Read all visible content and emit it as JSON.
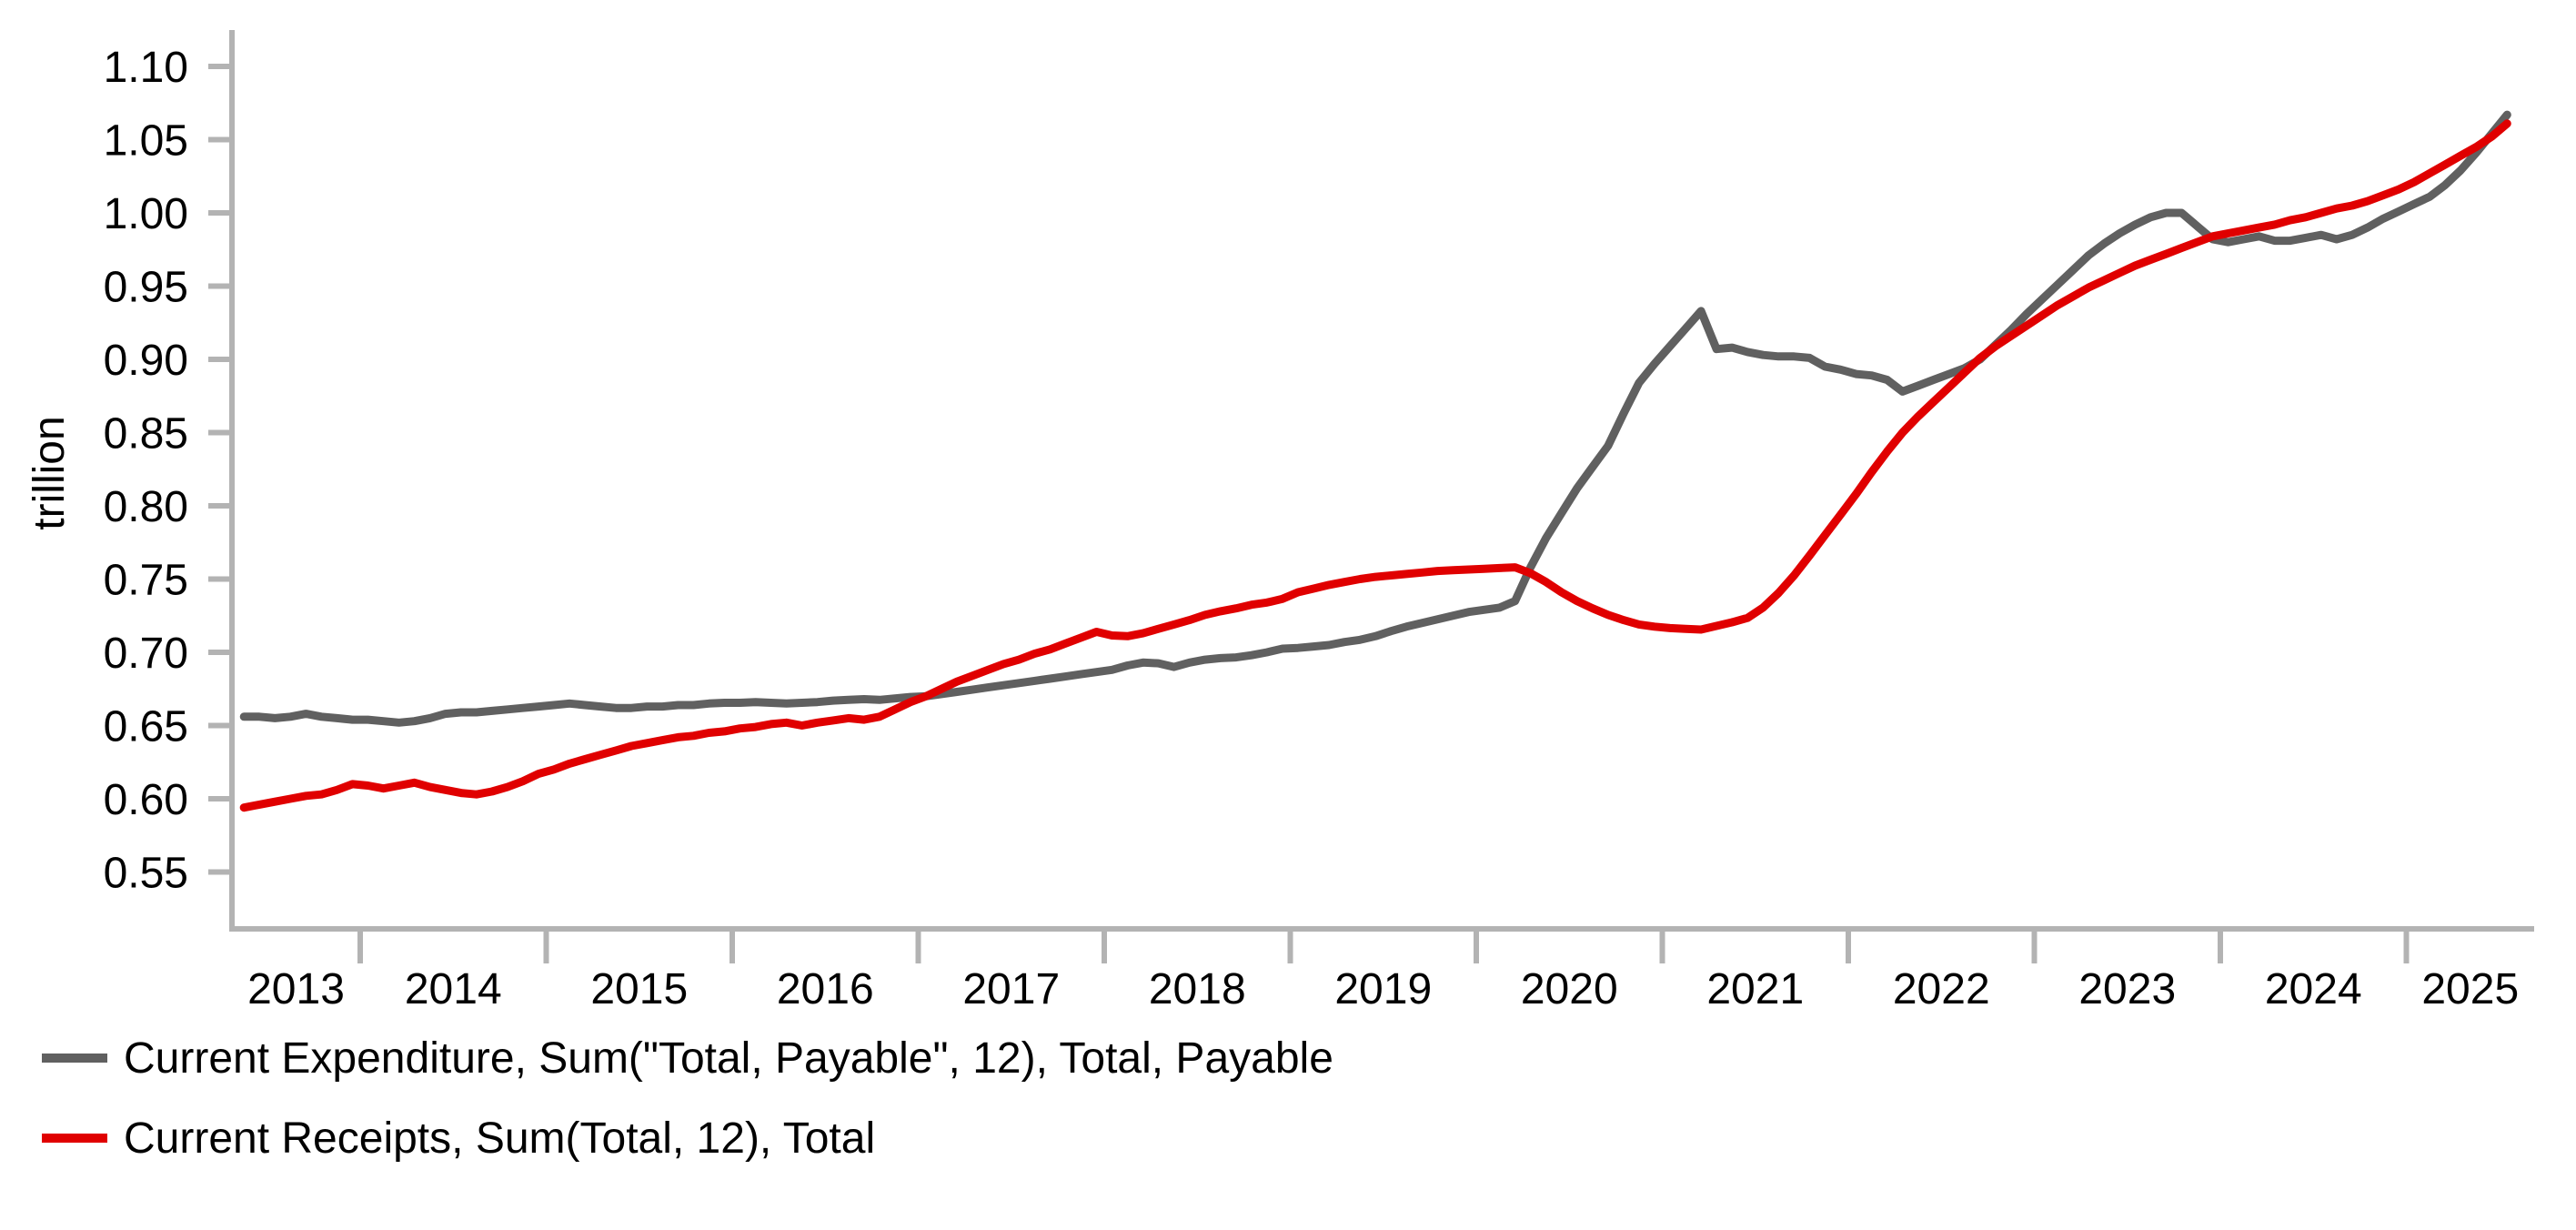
{
  "chart_data": {
    "type": "line",
    "title": "",
    "ylabel": "trillion",
    "xlabel": "",
    "grid": "off",
    "legend_position": "bottom-left",
    "axis_color": "#b3b3b3",
    "text_color": "#000000",
    "x_start": "2013-05",
    "x_end": "2025-07",
    "frequency": "monthly",
    "ylim": [
      0.55,
      1.1
    ],
    "y_ticks": [
      "0.55",
      "0.60",
      "0.65",
      "0.70",
      "0.75",
      "0.80",
      "0.85",
      "0.90",
      "0.95",
      "1.00",
      "1.05",
      "1.10"
    ],
    "x_tick_years": [
      2014,
      2015,
      2016,
      2017,
      2018,
      2019,
      2020,
      2021,
      2022,
      2023,
      2024,
      2025
    ],
    "x_year_labels": [
      "2013",
      "2014",
      "2015",
      "2016",
      "2017",
      "2018",
      "2019",
      "2020",
      "2021",
      "2022",
      "2023",
      "2024",
      "2025"
    ],
    "series": [
      {
        "name": "Current Expenditure, Sum(\"Total, Payable\", 12), Total, Payable",
        "color": "#606060",
        "values": [
          0.656,
          0.656,
          0.655,
          0.656,
          0.658,
          0.656,
          0.655,
          0.654,
          0.654,
          0.653,
          0.652,
          0.653,
          0.655,
          0.658,
          0.659,
          0.659,
          0.66,
          0.661,
          0.662,
          0.663,
          0.664,
          0.665,
          0.664,
          0.663,
          0.662,
          0.662,
          0.663,
          0.663,
          0.664,
          0.664,
          0.665,
          0.6655,
          0.6655,
          0.666,
          0.6655,
          0.665,
          0.6655,
          0.666,
          0.667,
          0.6675,
          0.668,
          0.6675,
          0.6685,
          0.6695,
          0.67,
          0.6715,
          0.673,
          0.6745,
          0.676,
          0.6775,
          0.679,
          0.6805,
          0.682,
          0.6835,
          0.685,
          0.6865,
          0.688,
          0.691,
          0.693,
          0.6925,
          0.69,
          0.693,
          0.695,
          0.696,
          0.6965,
          0.698,
          0.7,
          0.7025,
          0.703,
          0.704,
          0.705,
          0.707,
          0.7085,
          0.711,
          0.7145,
          0.7175,
          0.72,
          0.7225,
          0.725,
          0.7275,
          0.729,
          0.7305,
          0.735,
          0.758,
          0.778,
          0.795,
          0.812,
          0.8265,
          0.841,
          0.863,
          0.884,
          0.897,
          0.909,
          0.921,
          0.933,
          0.907,
          0.908,
          0.905,
          0.903,
          0.902,
          0.902,
          0.901,
          0.895,
          0.893,
          0.89,
          0.889,
          0.886,
          0.878,
          0.882,
          0.886,
          0.89,
          0.894,
          0.9,
          0.91,
          0.92,
          0.931,
          0.941,
          0.951,
          0.961,
          0.971,
          0.979,
          0.986,
          0.992,
          0.997,
          1.0,
          1.0,
          0.991,
          0.982,
          0.98,
          0.982,
          0.984,
          0.981,
          0.981,
          0.983,
          0.985,
          0.982,
          0.985,
          0.99,
          0.996,
          1.001,
          1.006,
          1.011,
          1.019,
          1.029,
          1.041,
          1.054,
          1.067
        ]
      },
      {
        "name": "Current Receipts, Sum(Total, 12), Total",
        "color": "#e00000",
        "values": [
          0.594,
          0.596,
          0.598,
          0.6,
          0.602,
          0.603,
          0.606,
          0.61,
          0.609,
          0.607,
          0.609,
          0.611,
          0.608,
          0.606,
          0.604,
          0.603,
          0.605,
          0.608,
          0.612,
          0.617,
          0.62,
          0.624,
          0.627,
          0.63,
          0.633,
          0.636,
          0.638,
          0.64,
          0.642,
          0.643,
          0.645,
          0.646,
          0.648,
          0.649,
          0.651,
          0.652,
          0.65,
          0.652,
          0.6535,
          0.655,
          0.654,
          0.656,
          0.661,
          0.666,
          0.67,
          0.675,
          0.68,
          0.684,
          0.688,
          0.692,
          0.695,
          0.699,
          0.702,
          0.706,
          0.71,
          0.714,
          0.7115,
          0.711,
          0.713,
          0.716,
          0.719,
          0.722,
          0.7255,
          0.728,
          0.73,
          0.7325,
          0.734,
          0.7365,
          0.741,
          0.7435,
          0.746,
          0.748,
          0.75,
          0.7515,
          0.7525,
          0.7535,
          0.7545,
          0.7555,
          0.756,
          0.7565,
          0.757,
          0.7575,
          0.758,
          0.754,
          0.748,
          0.741,
          0.735,
          0.73,
          0.7255,
          0.722,
          0.719,
          0.7175,
          0.7165,
          0.716,
          0.7155,
          0.718,
          0.7205,
          0.7235,
          0.7305,
          0.7405,
          0.7525,
          0.766,
          0.78,
          0.794,
          0.808,
          0.823,
          0.837,
          0.85,
          0.861,
          0.871,
          0.881,
          0.891,
          0.901,
          0.909,
          0.916,
          0.923,
          0.93,
          0.937,
          0.943,
          0.949,
          0.954,
          0.959,
          0.964,
          0.968,
          0.972,
          0.976,
          0.98,
          0.984,
          0.986,
          0.988,
          0.99,
          0.992,
          0.995,
          0.997,
          1.0,
          1.003,
          1.005,
          1.008,
          1.012,
          1.016,
          1.021,
          1.027,
          1.033,
          1.039,
          1.045,
          1.052,
          1.061
        ]
      }
    ]
  }
}
